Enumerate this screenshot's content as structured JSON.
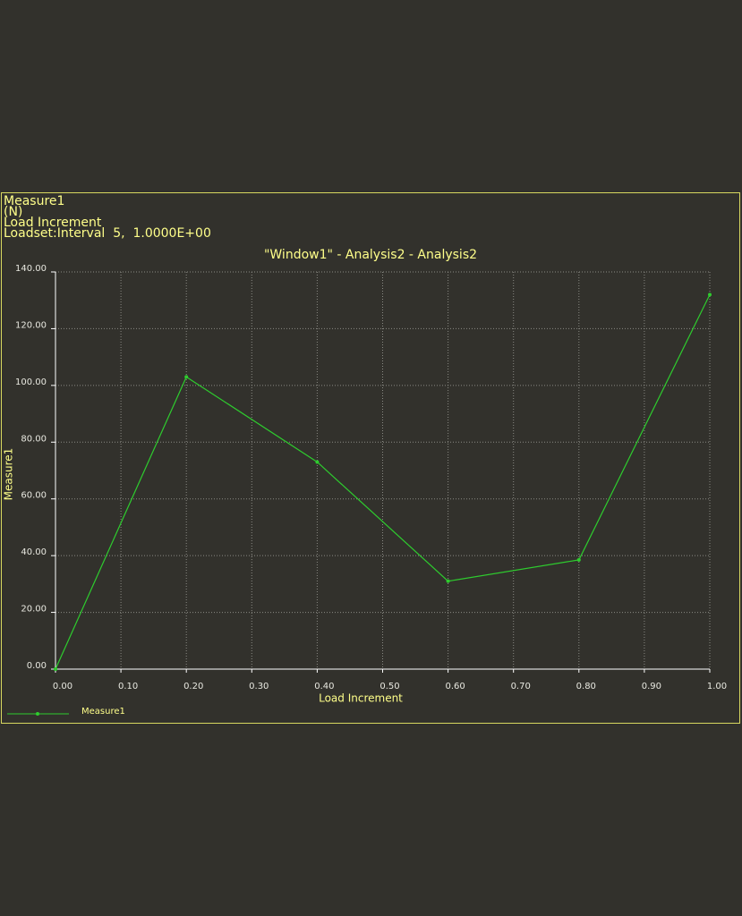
{
  "chart_data": {
    "type": "line",
    "annotations": [
      "Measure1",
      "(N)",
      "Load Increment",
      "Loadset:Interval  5,  1.0000E+00"
    ],
    "title": "\"Window1\" - Analysis2 - Analysis2",
    "xlabel": "Load Increment",
    "ylabel": "Measure1",
    "x": [
      0,
      0.2,
      0.4,
      0.6,
      0.8,
      1.0
    ],
    "series": [
      {
        "name": "Measure1",
        "color": "#2ecc2e",
        "values": [
          0,
          103,
          73,
          31,
          38.5,
          132
        ]
      }
    ],
    "xlim": [
      0,
      1
    ],
    "ylim": [
      0,
      140
    ],
    "xticks": [
      {
        "value": 0,
        "label": "0.00"
      },
      {
        "value": 0.1,
        "label": "0.10"
      },
      {
        "value": 0.2,
        "label": "0.20"
      },
      {
        "value": 0.3,
        "label": "0.30"
      },
      {
        "value": 0.4,
        "label": "0.40"
      },
      {
        "value": 0.5,
        "label": "0.50"
      },
      {
        "value": 0.6,
        "label": "0.60"
      },
      {
        "value": 0.7,
        "label": "0.70"
      },
      {
        "value": 0.8,
        "label": "0.80"
      },
      {
        "value": 0.9,
        "label": "0.90"
      },
      {
        "value": 1.0,
        "label": "1.00"
      }
    ],
    "yticks": [
      {
        "value": 0,
        "label": "0.00"
      },
      {
        "value": 20,
        "label": "20.00"
      },
      {
        "value": 40,
        "label": "40.00"
      },
      {
        "value": 60,
        "label": "60.00"
      },
      {
        "value": 80,
        "label": "80.00"
      },
      {
        "value": 100,
        "label": "100.00"
      },
      {
        "value": 120,
        "label": "120.00"
      },
      {
        "value": 140,
        "label": "140.00"
      }
    ],
    "grid": true
  }
}
